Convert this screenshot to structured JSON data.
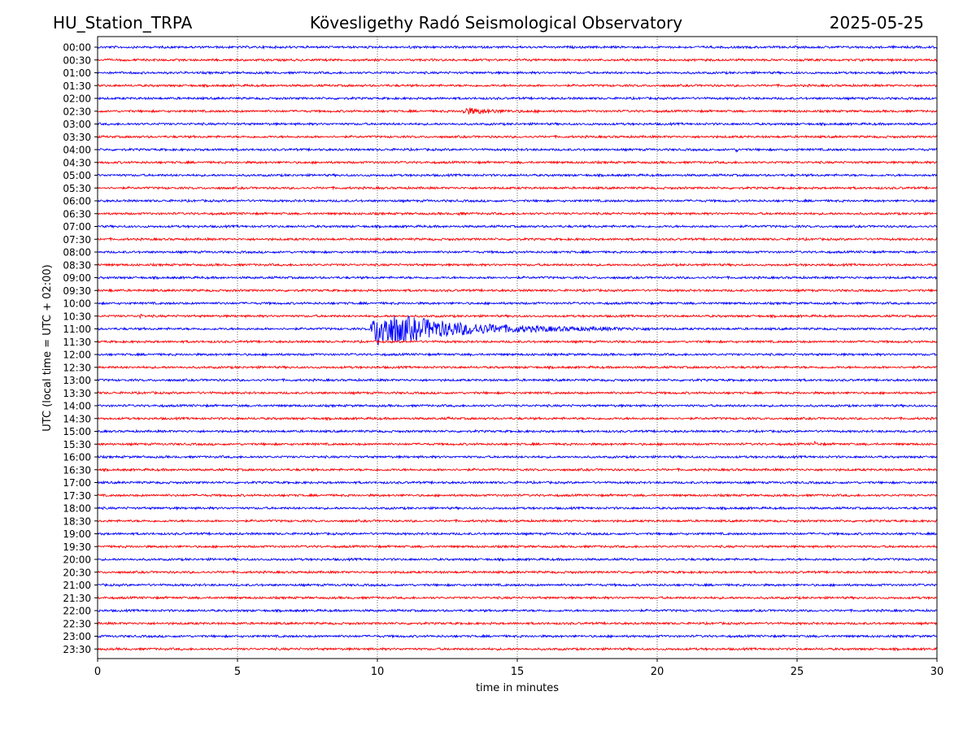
{
  "header": {
    "station": "HU_Station_TRPA",
    "observatory": "Kövesligethy Radó Seismological Observatory",
    "date": "2025-05-25"
  },
  "chart_data": {
    "type": "line",
    "title": "Kövesligethy Radó Seismological Observatory",
    "xlabel": "time in minutes",
    "ylabel": "UTC (local time = UTC + 02:00)",
    "xlim": [
      0,
      30
    ],
    "xticks": [
      0,
      5,
      10,
      15,
      20,
      25,
      30
    ],
    "vertical_gridlines_at": [
      5,
      10,
      15,
      20,
      25
    ],
    "grid": "vertical dotted",
    "trace_colors": [
      "#0000ff",
      "#ff0000"
    ],
    "rows": [
      "00:00",
      "00:30",
      "01:00",
      "01:30",
      "02:00",
      "02:30",
      "03:00",
      "03:30",
      "04:00",
      "04:30",
      "05:00",
      "05:30",
      "06:00",
      "06:30",
      "07:00",
      "07:30",
      "08:00",
      "08:30",
      "09:00",
      "09:30",
      "10:00",
      "10:30",
      "11:00",
      "11:30",
      "12:00",
      "12:30",
      "13:00",
      "13:30",
      "14:00",
      "14:30",
      "15:00",
      "15:30",
      "16:00",
      "16:30",
      "17:00",
      "17:30",
      "18:00",
      "18:30",
      "19:00",
      "19:30",
      "20:00",
      "20:30",
      "21:00",
      "21:30",
      "22:00",
      "22:30",
      "23:00",
      "23:30"
    ],
    "events": [
      {
        "row": "02:30",
        "start_min": 13.0,
        "duration_min": 3.5,
        "peak": 0.55
      },
      {
        "row": "06:30",
        "start_min": 12.9,
        "duration_min": 0.3,
        "peak": 0.5
      },
      {
        "row": "09:30",
        "start_min": 0.4,
        "duration_min": 0.25,
        "peak": 0.35
      },
      {
        "row": "10:30",
        "start_min": 1.5,
        "duration_min": 0.25,
        "peak": 0.4
      },
      {
        "row": "11:00",
        "start_min": 9.7,
        "duration_min": 10.5,
        "peak": 3.1
      },
      {
        "row": "04:00",
        "start_min": 22.8,
        "duration_min": 0.3,
        "peak": 0.3
      },
      {
        "row": "15:30",
        "start_min": 25.6,
        "duration_min": 0.5,
        "peak": 0.35
      },
      {
        "row": "14:30",
        "start_min": 12.5,
        "duration_min": 0.2,
        "peak": 0.25
      },
      {
        "row": "00:00",
        "start_min": 11.1,
        "duration_min": 0.5,
        "peak": 0.15
      }
    ]
  }
}
